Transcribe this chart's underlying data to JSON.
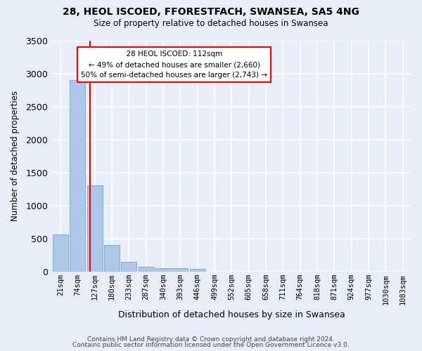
{
  "title1": "28, HEOL ISCOED, FFORESTFACH, SWANSEA, SA5 4NG",
  "title2": "Size of property relative to detached houses in Swansea",
  "xlabel": "Distribution of detached houses by size in Swansea",
  "ylabel": "Number of detached properties",
  "footer1": "Contains HM Land Registry data © Crown copyright and database right 2024.",
  "footer2": "Contains public sector information licensed under the Open Government Licence v3.0.",
  "bin_labels": [
    "21sqm",
    "74sqm",
    "127sqm",
    "180sqm",
    "233sqm",
    "287sqm",
    "340sqm",
    "393sqm",
    "446sqm",
    "499sqm",
    "552sqm",
    "605sqm",
    "658sqm",
    "711sqm",
    "764sqm",
    "818sqm",
    "871sqm",
    "924sqm",
    "977sqm",
    "1030sqm",
    "1083sqm"
  ],
  "bar_values": [
    560,
    2900,
    1310,
    410,
    155,
    80,
    58,
    50,
    40,
    0,
    0,
    0,
    0,
    0,
    0,
    0,
    0,
    0,
    0,
    0,
    0
  ],
  "bar_color": "#aec6e8",
  "bar_edge_color": "#5a9fd4",
  "property_label": "28 HEOL ISCOED: 112sqm",
  "smaller_label": "← 49% of detached houses are smaller (2,660)",
  "larger_label": "50% of semi-detached houses are larger (2,743) →",
  "ylim": [
    0,
    3500
  ],
  "yticks": [
    0,
    500,
    1000,
    1500,
    2000,
    2500,
    3000,
    3500
  ],
  "background_color": "#e8eef7",
  "grid_color": "#ffffff"
}
